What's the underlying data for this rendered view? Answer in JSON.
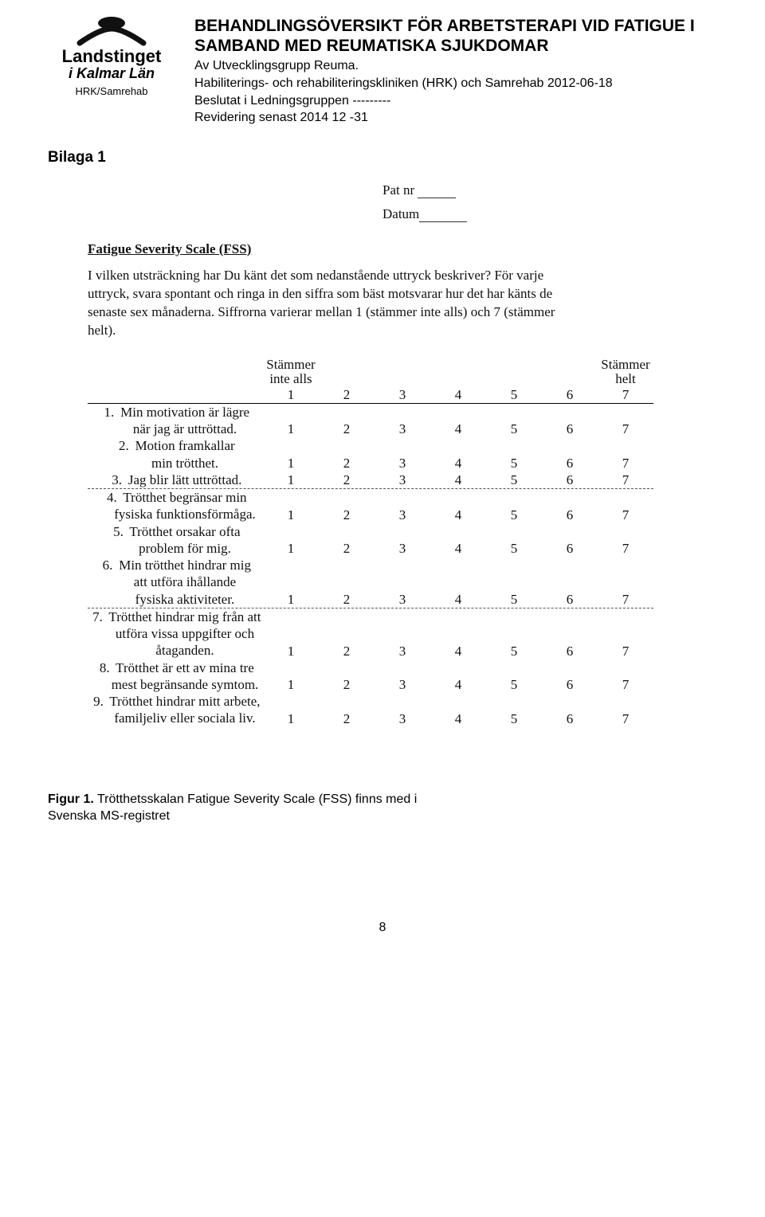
{
  "header": {
    "logo": {
      "line1": "Landstinget",
      "line2": "i Kalmar Län",
      "caption": "HRK/Samrehab"
    },
    "title_line1": "BEHANDLINGSÖVERSIKT FÖR ARBETSTERAPI VID FATIGUE I",
    "title_line2": "SAMBAND MED REUMATISKA SJUKDOMAR",
    "sub1": "Av Utvecklingsgrupp Reuma.",
    "sub2": "Habiliterings- och rehabiliteringskliniken (HRK) och Samrehab 2012-06-18",
    "sub3": "Beslutat i Ledningsgruppen ---------",
    "sub4": "Revidering senast 2014 12 -31"
  },
  "bilaga": "Bilaga 1",
  "form": {
    "patnr_label": "Pat nr",
    "datum_label": "Datum",
    "fss_title": "Fatigue Severity Scale (FSS)",
    "instructions": "I vilken utsträckning har Du känt det som nedanstående uttryck beskriver? För varje uttryck, svara spontant och ringa in den siffra som bäst motsvarar hur det har känts de senaste sex månaderna. Siffrorna varierar mellan 1 (stämmer inte alls) och 7 (stämmer helt).",
    "col_left_l1": "Stämmer",
    "col_left_l2": "inte alls",
    "col_right_l1": "Stämmer",
    "col_right_l2": "helt",
    "scale": [
      "1",
      "2",
      "3",
      "4",
      "5",
      "6",
      "7"
    ],
    "items": [
      {
        "n": "1.",
        "t1": "Min motivation är lägre",
        "t2": "när jag är uttröttad."
      },
      {
        "n": "2.",
        "t1": "Motion framkallar",
        "t2": "min trötthet."
      },
      {
        "n": "3.",
        "t1": "Jag blir lätt uttröttad.",
        "t2": ""
      },
      {
        "n": "4.",
        "t1": "Trötthet begränsar min",
        "t2": "fysiska funktionsförmåga."
      },
      {
        "n": "5.",
        "t1": "Trötthet orsakar ofta",
        "t2": "problem för mig."
      },
      {
        "n": "6.",
        "t1": "Min trötthet hindrar mig",
        "t2": "att utföra ihållande",
        "t3": "fysiska aktiviteter."
      },
      {
        "n": "7.",
        "t1": "Trötthet hindrar mig från att",
        "t2": "utföra vissa uppgifter och",
        "t3": "åtaganden."
      },
      {
        "n": "8.",
        "t1": "Trötthet är ett av mina tre",
        "t2": "mest begränsande symtom."
      },
      {
        "n": "9.",
        "t1": "Trötthet hindrar mitt arbete,",
        "t2": "familjeliv eller sociala liv."
      }
    ]
  },
  "figure": {
    "label": "Figur 1.",
    "text": " Trötthetsskalan Fatigue Severity Scale (FSS) finns med i",
    "text2": "Svenska MS-registret"
  },
  "page_number": "8"
}
